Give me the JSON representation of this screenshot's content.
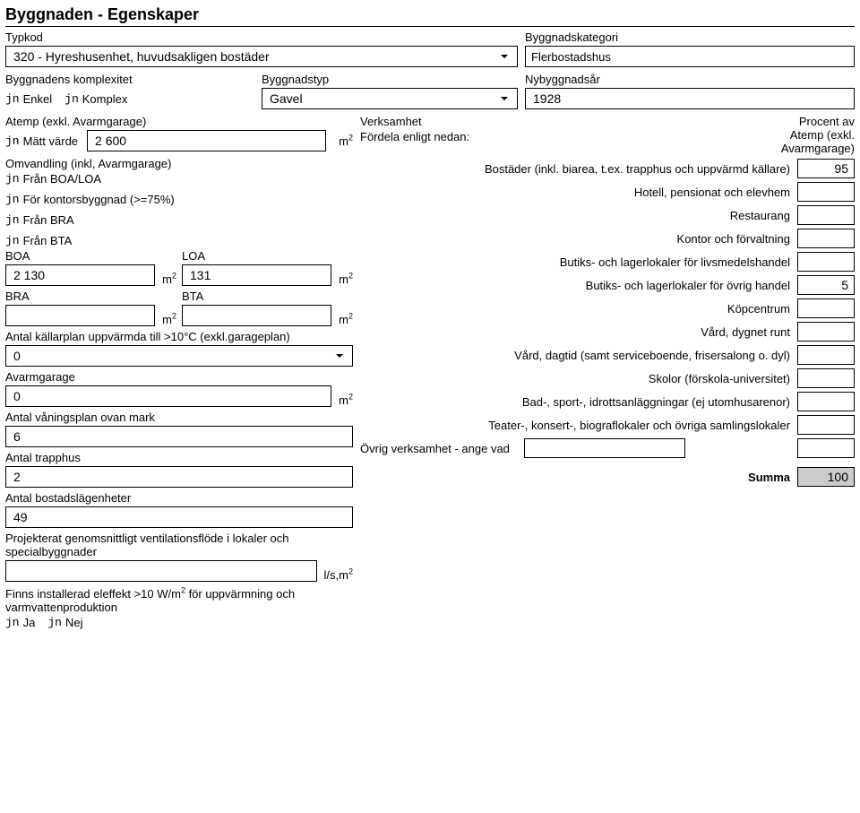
{
  "title": "Byggnaden - Egenskaper",
  "typkod": {
    "label": "Typkod",
    "value": "320 - Hyreshusenhet, huvudsakligen bostäder"
  },
  "byggnadskategori": {
    "label": "Byggnadskategori",
    "value": "Flerbostadshus"
  },
  "komplexitet": {
    "label": "Byggnadens komplexitet",
    "enkel": "Enkel",
    "komplex": "Komplex"
  },
  "byggnadstyp": {
    "label": "Byggnadstyp",
    "value": "Gavel"
  },
  "nybyggnadsar": {
    "label": "Nybyggnadsår",
    "value": "1928"
  },
  "atemp": {
    "label": "Atemp (exkl. Avarmgarage)",
    "matt": "Mätt värde",
    "value": "2 600",
    "unit_html": "m²"
  },
  "omvandling": {
    "label": "Omvandling (inkl, Avarmgarage)",
    "boaloa": "Från BOA/LOA",
    "kontor": "För kontorsbyggnad (>=75%)",
    "bra": "Från BRA",
    "bta": "Från BTA"
  },
  "boa": {
    "label": "BOA",
    "value": "2 130"
  },
  "loa": {
    "label": "LOA",
    "value": "131"
  },
  "bra": {
    "label": "BRA",
    "value": ""
  },
  "bta": {
    "label": "BTA",
    "value": ""
  },
  "kallarplan": {
    "label": "Antal källarplan uppvärmda till >10°C (exkl.garageplan)",
    "value": "0"
  },
  "avarmgarage": {
    "label": "Avarmgarage",
    "value": "0"
  },
  "vaningsplan": {
    "label": "Antal våningsplan ovan mark",
    "value": "6"
  },
  "trapphus": {
    "label": "Antal trapphus",
    "value": "2"
  },
  "bostadslagenheter": {
    "label": "Antal bostadslägenheter",
    "value": "49"
  },
  "ventflode": {
    "label": "Projekterat genomsnittligt ventilationsflöde i lokaler och specialbyggnader",
    "value": "",
    "unit": "l/s,m²"
  },
  "eleffekt": {
    "label": "Finns installerad eleffekt >10 W/m² för uppvärmning och varmvattenproduktion",
    "ja": "Ja",
    "nej": "Nej"
  },
  "verksamhet": {
    "label": "Verksamhet",
    "sub": "Fördela enligt nedan:",
    "pct_header1": "Procent av",
    "pct_header2": "Atemp (exkl.",
    "pct_header3": "Avarmgarage)",
    "rows": [
      {
        "label": "Bostäder (inkl. biarea, t.ex. trapphus och uppvärmd källare)",
        "value": "95"
      },
      {
        "label": "Hotell, pensionat och elevhem",
        "value": ""
      },
      {
        "label": "Restaurang",
        "value": ""
      },
      {
        "label": "Kontor och förvaltning",
        "value": ""
      },
      {
        "label": "Butiks- och lagerlokaler för livsmedelshandel",
        "value": ""
      },
      {
        "label": "Butiks- och lagerlokaler för övrig handel",
        "value": "5"
      },
      {
        "label": "Köpcentrum",
        "value": ""
      },
      {
        "label": "Vård, dygnet runt",
        "value": ""
      },
      {
        "label": "Vård, dagtid (samt serviceboende, frisersalong o. dyl)",
        "value": ""
      },
      {
        "label": "Skolor (förskola-universitet)",
        "value": ""
      },
      {
        "label": "Bad-, sport-, idrottsanläggningar (ej utomhusarenor)",
        "value": ""
      },
      {
        "label": "Teater-, konsert-, biograflokaler och övriga samlingslokaler",
        "value": ""
      }
    ],
    "other_label": "Övrig verksamhet - ange vad",
    "other_value": "",
    "other_pct": "",
    "summa_label": "Summa",
    "summa_value": "100"
  }
}
